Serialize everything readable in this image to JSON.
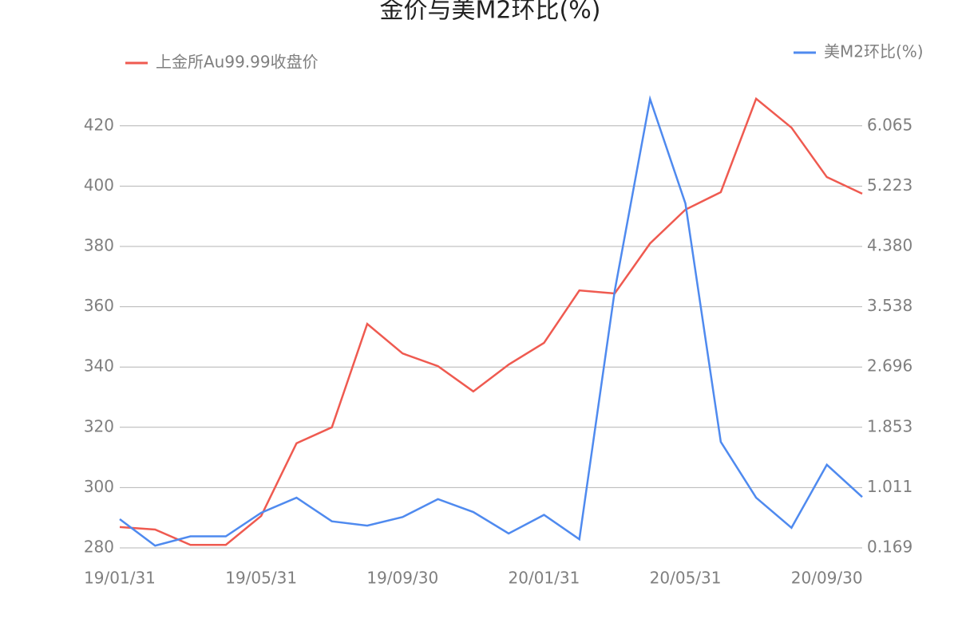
{
  "chart_data": {
    "type": "line",
    "title": "金价与美M2环比(%)",
    "categories": [
      "19/01/31",
      null,
      null,
      null,
      "19/05/31",
      null,
      null,
      null,
      "19/09/30",
      null,
      null,
      null,
      "20/01/31",
      null,
      null,
      null,
      "20/05/31",
      null,
      null,
      null,
      "20/09/30",
      null
    ],
    "series": [
      {
        "name": "上金所Au99.99收盘价",
        "color": "#ef5a50",
        "axis": "y",
        "values": [
          286.9,
          286.1,
          281,
          281,
          290.6,
          314.7,
          320,
          354.3,
          344.5,
          340.3,
          331.9,
          340.8,
          348,
          365.4,
          364.4,
          381,
          392.2,
          398,
          429,
          419.4,
          403,
          397.5
        ]
      },
      {
        "name": "美M2环比(%)",
        "color": "#4f8aef",
        "axis": "y2",
        "values": [
          0.57,
          0.2,
          0.33,
          0.33,
          0.66,
          0.87,
          0.54,
          0.48,
          0.6,
          0.85,
          0.67,
          0.37,
          0.63,
          0.29,
          3.76,
          6.44,
          4.98,
          1.65,
          0.87,
          0.45,
          1.33,
          0.88
        ]
      }
    ],
    "ylim": [
      280,
      436
    ],
    "yticks": [
      280,
      300,
      320,
      340,
      360,
      380,
      400,
      420
    ],
    "y2lim": [
      0.169,
      6.739
    ],
    "y2ticks": [
      0.169,
      1.011,
      1.853,
      2.696,
      {
        "value": 3.538,
        "label": "3.538"
      },
      {
        "value": 4.38,
        "label": "4.380"
      },
      5.223,
      6.065
    ],
    "grid": true
  }
}
